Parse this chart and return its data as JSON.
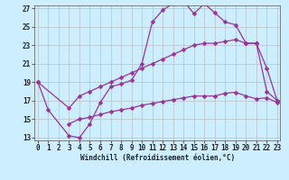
{
  "xlabel": "Windchill (Refroidissement éolien,°C)",
  "bg_color": "#cceeff",
  "line_color": "#993399",
  "grid_color": "#bbbbbb",
  "xmin": 0,
  "xmax": 23,
  "ymin": 13,
  "ymax": 27,
  "yticks": [
    13,
    15,
    17,
    19,
    21,
    23,
    25,
    27
  ],
  "xticks": [
    0,
    1,
    2,
    3,
    4,
    5,
    6,
    7,
    8,
    9,
    10,
    11,
    12,
    13,
    14,
    15,
    16,
    17,
    18,
    19,
    20,
    21,
    22,
    23
  ],
  "line1_x": [
    0,
    1,
    3,
    4,
    5,
    6,
    7,
    8,
    9,
    10,
    11,
    12,
    13,
    14,
    15,
    16,
    17,
    18,
    19,
    20,
    21,
    22,
    23
  ],
  "line1_y": [
    19.0,
    16.0,
    13.2,
    13.0,
    14.5,
    16.8,
    18.5,
    18.8,
    19.2,
    21.0,
    25.5,
    26.8,
    27.5,
    27.8,
    26.4,
    27.5,
    26.5,
    25.5,
    25.2,
    23.2,
    23.2,
    20.5,
    17.0
  ],
  "line2_x": [
    0,
    3,
    4,
    5,
    6,
    7,
    8,
    9,
    10,
    11,
    12,
    13,
    14,
    15,
    16,
    17,
    18,
    19,
    20,
    21,
    22,
    23
  ],
  "line2_y": [
    19.0,
    16.2,
    17.5,
    18.0,
    18.5,
    19.0,
    19.5,
    20.0,
    20.5,
    21.0,
    21.5,
    22.0,
    22.5,
    23.0,
    23.2,
    23.2,
    23.4,
    23.6,
    23.2,
    23.2,
    18.0,
    17.0
  ],
  "line3_x": [
    3,
    4,
    5,
    6,
    7,
    8,
    9,
    10,
    11,
    12,
    13,
    14,
    15,
    16,
    17,
    18,
    19,
    20,
    21,
    22,
    23
  ],
  "line3_y": [
    14.5,
    15.0,
    15.2,
    15.5,
    15.8,
    16.0,
    16.2,
    16.5,
    16.7,
    16.9,
    17.1,
    17.3,
    17.5,
    17.5,
    17.5,
    17.8,
    17.9,
    17.5,
    17.2,
    17.3,
    16.8
  ],
  "marker": "D",
  "markersize": 2.5,
  "linewidth": 0.9,
  "tick_fontsize": 5.5,
  "xlabel_fontsize": 5.5
}
